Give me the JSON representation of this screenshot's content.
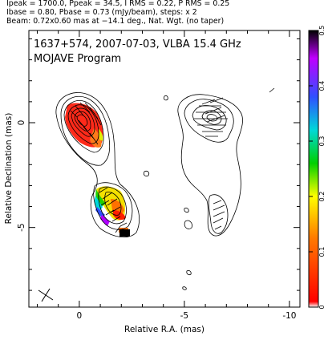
{
  "header": {
    "line1": "Ipeak = 1700.0, Ppeak = 34.5, I RMS = 0.22, P RMS = 0.25",
    "line2": "Ibase = 0.80, Pbase = 0.73 (mJy/beam), steps: x 2",
    "line3": "Beam: 0.72x0.60 mas at −14.1 deg., Nat. Wgt. (no taper)"
  },
  "chart_data": {
    "type": "contour",
    "title": "1637+574, 2007-07-03, VLBA 15.4 GHz",
    "subtitle": "MOJAVE Program",
    "xlabel": "Relative R.A. (mas)",
    "ylabel": "Relative Declination (mas)",
    "xlim": [
      2.4,
      -10.5
    ],
    "ylim": [
      -8.8,
      4.4
    ],
    "x_ticks": [
      0,
      -5,
      -10
    ],
    "y_ticks": [
      0,
      -5
    ],
    "colorbar": {
      "range": [
        0,
        0.5
      ],
      "ticks": [
        0,
        0.1,
        0.2,
        0.3,
        0.4,
        0.5
      ],
      "colors": [
        "#ffffff",
        "#ff0000",
        "#ff8c00",
        "#ffff00",
        "#00e000",
        "#00e0e0",
        "#3050ff",
        "#c000ff",
        "#000000"
      ]
    },
    "peaks": {
      "ipeak": 1700.0,
      "ppeak": 34.5,
      "units": "mJy/beam"
    },
    "beam": {
      "major_mas": 0.72,
      "minor_mas": 0.6,
      "pa_deg": -14.1
    }
  }
}
